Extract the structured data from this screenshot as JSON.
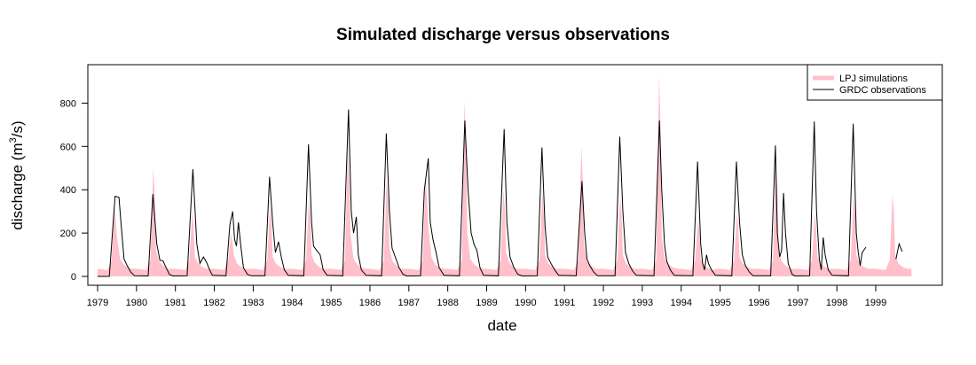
{
  "chart_data": {
    "type": "line",
    "title": "Simulated discharge versus observations",
    "xlabel": "date",
    "ylabel": "discharge (m³/s)",
    "ylabel_parts": {
      "pre": "discharge (m",
      "sup": "3",
      "post": "/s)"
    },
    "ylim": [
      0,
      950
    ],
    "yticks": [
      0,
      200,
      400,
      600,
      800
    ],
    "xlim": [
      1979,
      1999.92
    ],
    "xticks": [
      "1979",
      "1980",
      "1981",
      "1982",
      "1983",
      "1984",
      "1985",
      "1986",
      "1987",
      "1988",
      "1989",
      "1990",
      "1991",
      "1992",
      "1993",
      "1994",
      "1995",
      "1996",
      "1997",
      "1998",
      "1999"
    ],
    "legend": {
      "position": "top-right",
      "entries": [
        "LPJ simulations",
        "GRDC observations"
      ]
    },
    "series": [
      {
        "name": "LPJ simulations",
        "style": "filled",
        "color": "#ffc0cb",
        "annual": [
          {
            "year": 1979,
            "base": 35,
            "peak": 330,
            "after": [
              180,
              80,
              55,
              40
            ]
          },
          {
            "year": 1980,
            "base": 35,
            "peak": 500,
            "after": [
              120,
              70,
              50,
              35
            ]
          },
          {
            "year": 1981,
            "base": 35,
            "peak": 300,
            "after": [
              90,
              60,
              45,
              35
            ]
          },
          {
            "year": 1982,
            "base": 35,
            "peak": 200,
            "after": [
              100,
              60,
              45,
              35
            ]
          },
          {
            "year": 1983,
            "base": 35,
            "peak": 330,
            "after": [
              90,
              60,
              45,
              35
            ]
          },
          {
            "year": 1984,
            "base": 35,
            "peak": 360,
            "after": [
              100,
              65,
              45,
              35
            ]
          },
          {
            "year": 1985,
            "base": 35,
            "peak": 590,
            "after": [
              200,
              80,
              55,
              40
            ]
          },
          {
            "year": 1986,
            "base": 35,
            "peak": 450,
            "after": [
              130,
              70,
              50,
              35
            ]
          },
          {
            "year": 1987,
            "base": 35,
            "peak": 460,
            "after": [
              230,
              90,
              55,
              40
            ]
          },
          {
            "year": 1988,
            "base": 35,
            "peak": 810,
            "after": [
              200,
              80,
              55,
              40
            ]
          },
          {
            "year": 1989,
            "base": 35,
            "peak": 400,
            "after": [
              110,
              65,
              45,
              35
            ]
          },
          {
            "year": 1990,
            "base": 35,
            "peak": 390,
            "after": [
              100,
              60,
              45,
              35
            ]
          },
          {
            "year": 1991,
            "base": 35,
            "peak": 600,
            "after": [
              150,
              70,
              50,
              35
            ]
          },
          {
            "year": 1992,
            "base": 35,
            "peak": 370,
            "after": [
              100,
              60,
              45,
              35
            ]
          },
          {
            "year": 1993,
            "base": 35,
            "peak": 930,
            "after": [
              180,
              80,
              55,
              40
            ]
          },
          {
            "year": 1994,
            "base": 35,
            "peak": 260,
            "after": [
              80,
              55,
              40,
              30
            ]
          },
          {
            "year": 1995,
            "base": 35,
            "peak": 290,
            "after": [
              90,
              60,
              45,
              35
            ]
          },
          {
            "year": 1996,
            "base": 35,
            "peak": 540,
            "after": [
              130,
              70,
              50,
              35
            ]
          },
          {
            "year": 1997,
            "base": 35,
            "peak": 290,
            "after": [
              90,
              60,
              45,
              35
            ]
          },
          {
            "year": 1998,
            "base": 35,
            "peak": 380,
            "after": [
              100,
              60,
              45,
              35
            ]
          },
          {
            "year": 1999,
            "base": 35,
            "peak": 380,
            "after": [
              100,
              60,
              45,
              35
            ]
          }
        ]
      },
      {
        "name": "GRDC observations",
        "style": "line",
        "color": "#000000",
        "points": [
          [
            1979.0,
            0
          ],
          [
            1979.3,
            0
          ],
          [
            1979.38,
            200
          ],
          [
            1979.45,
            370
          ],
          [
            1979.55,
            365
          ],
          [
            1979.6,
            250
          ],
          [
            1979.68,
            80
          ],
          [
            1979.76,
            50
          ],
          [
            1979.85,
            20
          ],
          [
            1979.95,
            3
          ],
          [
            1980.3,
            2
          ],
          [
            1980.42,
            380
          ],
          [
            1980.52,
            150
          ],
          [
            1980.6,
            75
          ],
          [
            1980.68,
            72
          ],
          [
            1980.76,
            40
          ],
          [
            1980.85,
            8
          ],
          [
            1980.95,
            2
          ],
          [
            1981.3,
            3
          ],
          [
            1981.45,
            495
          ],
          [
            1981.55,
            150
          ],
          [
            1981.63,
            60
          ],
          [
            1981.72,
            90
          ],
          [
            1981.8,
            65
          ],
          [
            1981.88,
            30
          ],
          [
            1981.95,
            5
          ],
          [
            1982.3,
            3
          ],
          [
            1982.4,
            240
          ],
          [
            1982.47,
            300
          ],
          [
            1982.52,
            170
          ],
          [
            1982.57,
            140
          ],
          [
            1982.62,
            250
          ],
          [
            1982.68,
            140
          ],
          [
            1982.75,
            40
          ],
          [
            1982.85,
            10
          ],
          [
            1982.95,
            3
          ],
          [
            1983.3,
            3
          ],
          [
            1983.42,
            460
          ],
          [
            1983.5,
            250
          ],
          [
            1983.57,
            110
          ],
          [
            1983.65,
            160
          ],
          [
            1983.72,
            90
          ],
          [
            1983.8,
            30
          ],
          [
            1983.9,
            5
          ],
          [
            1984.3,
            3
          ],
          [
            1984.42,
            610
          ],
          [
            1984.5,
            250
          ],
          [
            1984.55,
            140
          ],
          [
            1984.63,
            120
          ],
          [
            1984.72,
            100
          ],
          [
            1984.8,
            30
          ],
          [
            1984.9,
            5
          ],
          [
            1985.3,
            3
          ],
          [
            1985.45,
            770
          ],
          [
            1985.52,
            300
          ],
          [
            1985.58,
            200
          ],
          [
            1985.65,
            275
          ],
          [
            1985.7,
            100
          ],
          [
            1985.78,
            30
          ],
          [
            1985.9,
            5
          ],
          [
            1986.3,
            3
          ],
          [
            1986.42,
            660
          ],
          [
            1986.5,
            300
          ],
          [
            1986.57,
            130
          ],
          [
            1986.65,
            90
          ],
          [
            1986.75,
            40
          ],
          [
            1986.85,
            10
          ],
          [
            1986.95,
            2
          ],
          [
            1987.3,
            3
          ],
          [
            1987.4,
            400
          ],
          [
            1987.5,
            545
          ],
          [
            1987.55,
            250
          ],
          [
            1987.62,
            170
          ],
          [
            1987.7,
            110
          ],
          [
            1987.78,
            40
          ],
          [
            1987.9,
            5
          ],
          [
            1988.3,
            3
          ],
          [
            1988.44,
            720
          ],
          [
            1988.52,
            400
          ],
          [
            1988.6,
            200
          ],
          [
            1988.68,
            145
          ],
          [
            1988.75,
            120
          ],
          [
            1988.83,
            40
          ],
          [
            1988.92,
            5
          ],
          [
            1989.3,
            3
          ],
          [
            1989.45,
            680
          ],
          [
            1989.52,
            250
          ],
          [
            1989.6,
            90
          ],
          [
            1989.7,
            40
          ],
          [
            1989.8,
            10
          ],
          [
            1989.92,
            2
          ],
          [
            1990.3,
            3
          ],
          [
            1990.42,
            595
          ],
          [
            1990.5,
            230
          ],
          [
            1990.57,
            90
          ],
          [
            1990.65,
            60
          ],
          [
            1990.75,
            30
          ],
          [
            1990.85,
            5
          ],
          [
            1991.3,
            3
          ],
          [
            1991.45,
            440
          ],
          [
            1991.52,
            200
          ],
          [
            1991.58,
            80
          ],
          [
            1991.65,
            50
          ],
          [
            1991.75,
            20
          ],
          [
            1991.85,
            3
          ],
          [
            1992.3,
            3
          ],
          [
            1992.42,
            645
          ],
          [
            1992.5,
            300
          ],
          [
            1992.57,
            110
          ],
          [
            1992.65,
            60
          ],
          [
            1992.75,
            25
          ],
          [
            1992.85,
            5
          ],
          [
            1993.3,
            3
          ],
          [
            1993.44,
            720
          ],
          [
            1993.5,
            400
          ],
          [
            1993.57,
            150
          ],
          [
            1993.63,
            70
          ],
          [
            1993.72,
            30
          ],
          [
            1993.82,
            5
          ],
          [
            1994.3,
            3
          ],
          [
            1994.42,
            530
          ],
          [
            1994.5,
            150
          ],
          [
            1994.55,
            60
          ],
          [
            1994.6,
            30
          ],
          [
            1994.65,
            100
          ],
          [
            1994.7,
            60
          ],
          [
            1994.78,
            30
          ],
          [
            1994.88,
            5
          ],
          [
            1995.3,
            3
          ],
          [
            1995.42,
            530
          ],
          [
            1995.5,
            250
          ],
          [
            1995.57,
            100
          ],
          [
            1995.65,
            50
          ],
          [
            1995.75,
            20
          ],
          [
            1995.85,
            3
          ],
          [
            1996.3,
            3
          ],
          [
            1996.42,
            605
          ],
          [
            1996.47,
            200
          ],
          [
            1996.53,
            90
          ],
          [
            1996.58,
            120
          ],
          [
            1996.63,
            385
          ],
          [
            1996.68,
            200
          ],
          [
            1996.75,
            60
          ],
          [
            1996.85,
            10
          ],
          [
            1996.93,
            2
          ],
          [
            1997.3,
            3
          ],
          [
            1997.42,
            715
          ],
          [
            1997.48,
            300
          ],
          [
            1997.55,
            80
          ],
          [
            1997.6,
            30
          ],
          [
            1997.65,
            180
          ],
          [
            1997.7,
            100
          ],
          [
            1997.78,
            30
          ],
          [
            1997.88,
            5
          ],
          [
            1998.3,
            3
          ],
          [
            1998.42,
            705
          ],
          [
            1998.5,
            200
          ],
          [
            1998.55,
            110
          ],
          [
            1998.6,
            50
          ],
          [
            1998.65,
            110
          ],
          [
            1998.75,
            135
          ]
        ],
        "segments_break_after": [
          1998.75
        ],
        "tail": [
          [
            1999.52,
            80
          ],
          [
            1999.6,
            150
          ],
          [
            1999.68,
            115
          ]
        ]
      }
    ]
  }
}
